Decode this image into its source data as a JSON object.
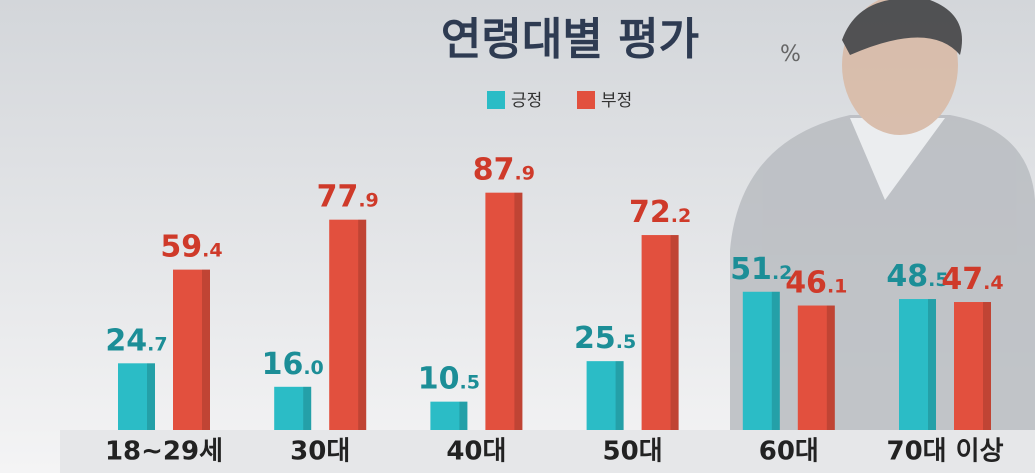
{
  "chart_data": {
    "type": "bar",
    "title": "연령대별 평가",
    "unit": "%",
    "categories": [
      "18~29세",
      "30대",
      "40대",
      "50대",
      "60대",
      "70대 이상"
    ],
    "series": [
      {
        "name": "긍정",
        "color": "#2bbcc6",
        "values": [
          24.7,
          16.0,
          10.5,
          25.5,
          51.2,
          48.5
        ],
        "value_labels": [
          "24.7",
          "16.0",
          "10.5",
          "25.5",
          "51.2",
          "48.5"
        ]
      },
      {
        "name": "부정",
        "color": "#e2503e",
        "values": [
          59.4,
          77.9,
          87.9,
          72.2,
          46.1,
          47.4
        ],
        "value_labels": [
          "59.4",
          "77.9",
          "87.9",
          "72.2",
          "46.1",
          "47.4"
        ]
      }
    ],
    "ylim": [
      0,
      100
    ]
  }
}
